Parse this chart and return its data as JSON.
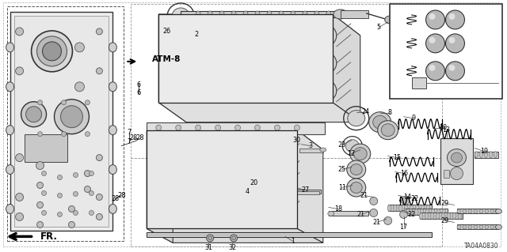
{
  "part_number": "TA04A0830",
  "background_color": "#ffffff",
  "fig_width": 6.4,
  "fig_height": 3.19,
  "dpi": 100,
  "atm_label": "ATM-8",
  "fr_label": "FR.",
  "border_color": "#888888",
  "line_color": "#000000",
  "body_fill": "#f5f5f5",
  "dark_fill": "#cccccc",
  "mid_fill": "#e0e0e0"
}
